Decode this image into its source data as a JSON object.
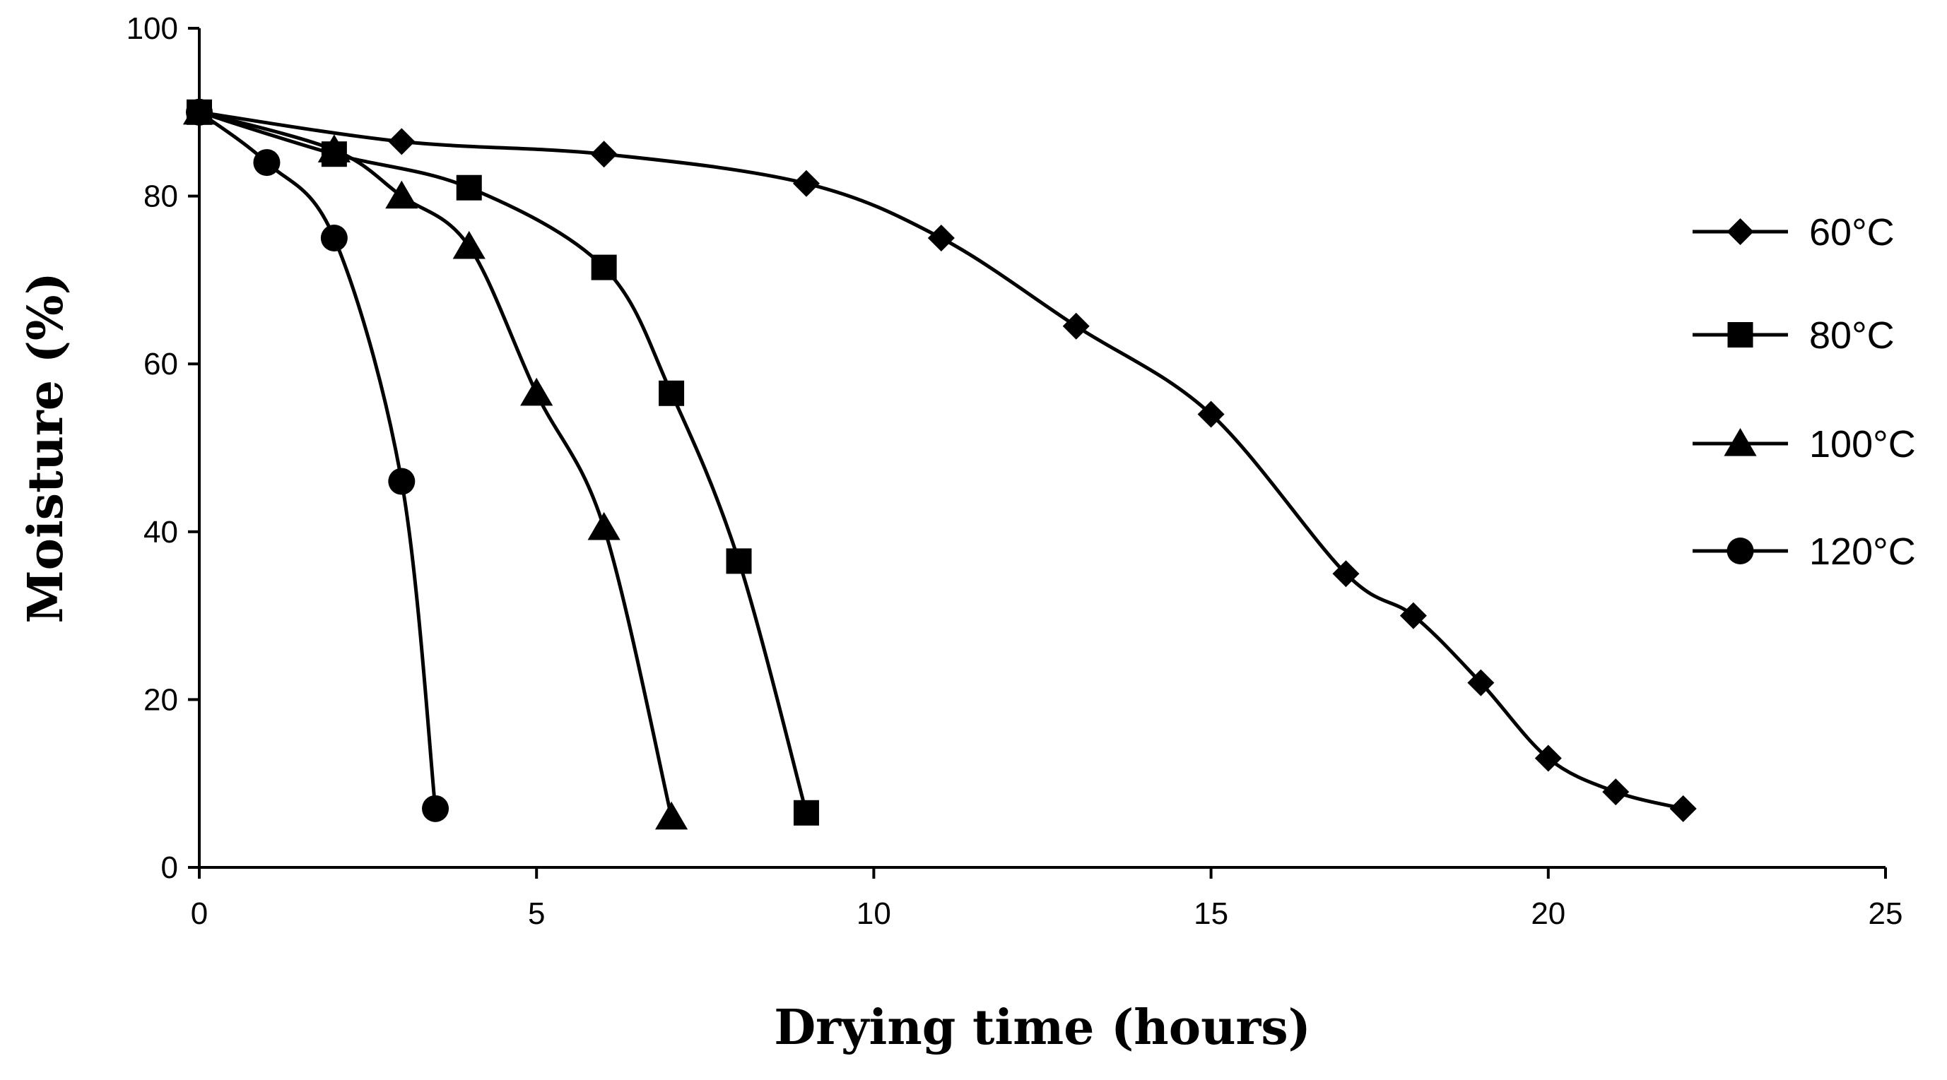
{
  "chart_data": {
    "type": "line",
    "title": "",
    "xlabel": "Drying time (hours)",
    "ylabel": "Moisture (%)",
    "xlim": [
      0,
      25
    ],
    "ylim": [
      0,
      100
    ],
    "xticks": [
      0,
      5,
      10,
      15,
      20,
      25
    ],
    "yticks": [
      0,
      20,
      40,
      60,
      80,
      100
    ],
    "grid": false,
    "legend_position": "right",
    "line_color": "#000000",
    "series": [
      {
        "name": "60°C",
        "marker": "diamond",
        "x": [
          0,
          3,
          6,
          9,
          11,
          13,
          15,
          17,
          18,
          19,
          20,
          21,
          22
        ],
        "y": [
          90,
          86.5,
          85,
          81.5,
          75,
          64.5,
          54,
          35,
          30,
          22,
          13,
          9,
          7
        ]
      },
      {
        "name": "80°C",
        "marker": "square",
        "x": [
          0,
          2,
          4,
          6,
          7,
          8,
          9
        ],
        "y": [
          90,
          85,
          81,
          71.5,
          56.5,
          36.5,
          6.5
        ]
      },
      {
        "name": "100°C",
        "marker": "triangle",
        "x": [
          0,
          2,
          3,
          4,
          5,
          6,
          7
        ],
        "y": [
          90,
          85.5,
          80,
          74,
          56.5,
          40.5,
          6
        ]
      },
      {
        "name": "120°C",
        "marker": "circle",
        "x": [
          0,
          1,
          2,
          3,
          3.5
        ],
        "y": [
          90,
          84,
          75,
          46,
          7
        ]
      }
    ]
  }
}
